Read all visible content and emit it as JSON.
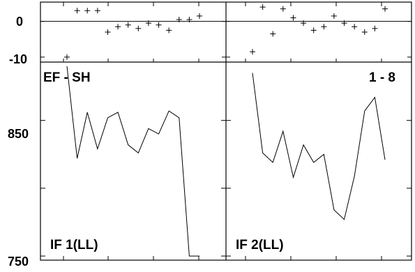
{
  "chart_data": [
    {
      "type": "scatter",
      "panel": "residual-left",
      "y_ticks": [
        "0",
        "-10"
      ],
      "ylim": [
        -11,
        5
      ],
      "x": [
        1,
        2,
        3,
        4,
        5,
        6,
        7,
        8,
        9,
        10,
        11,
        12,
        13,
        14
      ],
      "values": [
        -10,
        3,
        3,
        3,
        -3,
        -1.5,
        -1,
        -2,
        -0.5,
        -1,
        -2.5,
        0.5,
        0.5,
        1.5
      ]
    },
    {
      "type": "scatter",
      "panel": "residual-right",
      "ylim": [
        -11,
        5
      ],
      "x": [
        1,
        2,
        3,
        4,
        5,
        6,
        7,
        8,
        9,
        10,
        11,
        12,
        13,
        14
      ],
      "values": [
        -8.5,
        4,
        -3.5,
        3.5,
        1,
        -0.5,
        -2.5,
        -1.5,
        1.5,
        -0.5,
        -1.5,
        -3,
        -2,
        3.5
      ]
    },
    {
      "type": "line",
      "panel": "main-left",
      "label": "IF 1(LL)",
      "corner_label": "EF - SH",
      "y_ticks": [
        "850",
        "750"
      ],
      "ylim": [
        748,
        892
      ],
      "x": [
        1,
        2,
        3,
        4,
        5,
        6,
        7,
        8,
        9,
        10,
        11,
        12,
        13,
        14
      ],
      "values": [
        890,
        822,
        856,
        829,
        852,
        856,
        832,
        826,
        844,
        840,
        857,
        852,
        750,
        750
      ]
    },
    {
      "type": "line",
      "panel": "main-right",
      "label": "IF 2(LL)",
      "corner_label": "1 - 8",
      "ylim": [
        748,
        892
      ],
      "x": [
        1,
        2,
        3,
        4,
        5,
        6,
        7,
        8,
        9,
        10,
        11,
        12,
        13,
        14
      ],
      "values": [
        885,
        826,
        819,
        842,
        808,
        832,
        819,
        825,
        784,
        777,
        809,
        857,
        867,
        821
      ]
    }
  ]
}
